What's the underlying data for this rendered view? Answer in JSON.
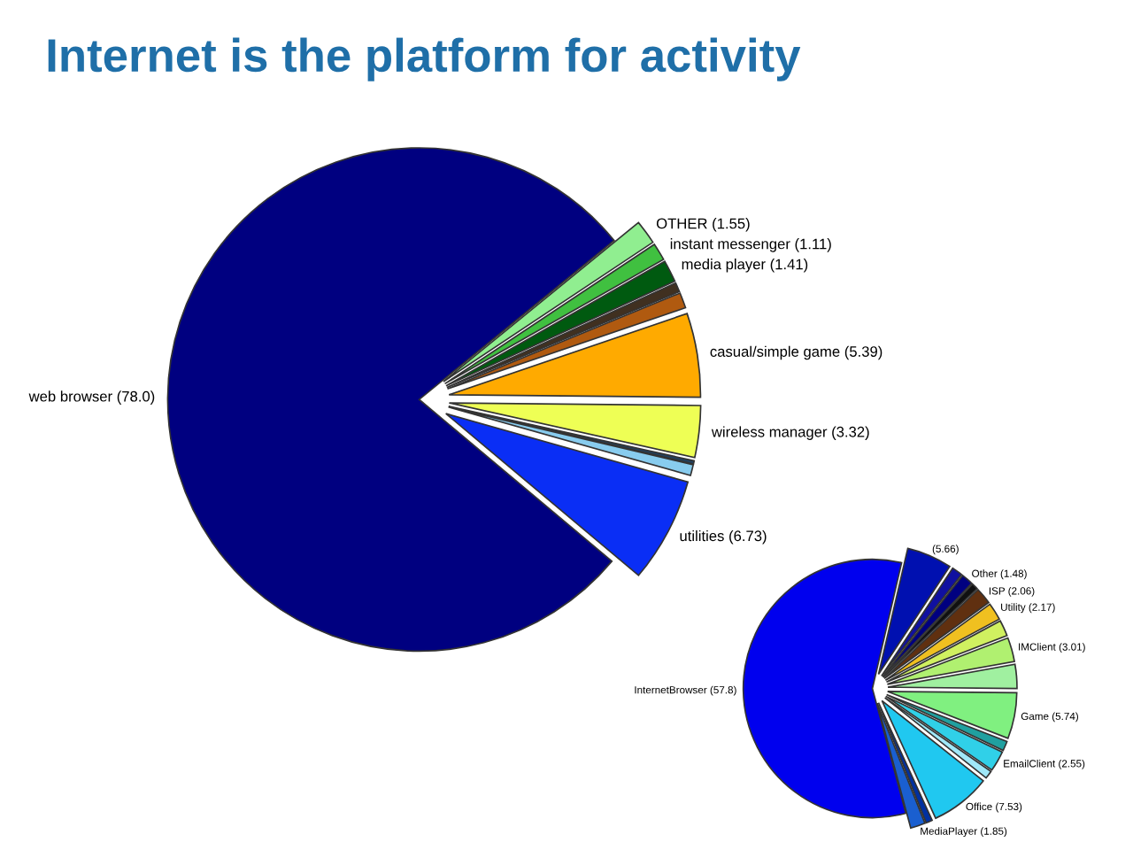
{
  "chart_data": [
    {
      "type": "pie",
      "title": "Internet is the platform for activity",
      "categories": [
        "utilities",
        null,
        null,
        "wireless manager",
        "casual/simple game",
        null,
        null,
        "media player",
        "instant messenger",
        "OTHER",
        "web browser"
      ],
      "values": [
        6.73,
        0.7,
        0.2,
        3.32,
        5.39,
        0.99,
        0.6,
        1.41,
        1.11,
        1.55,
        78.0
      ],
      "value_labels": [
        "(6.73)",
        null,
        null,
        "(3.32)",
        "(5.39)",
        null,
        null,
        "(1.41)",
        "(1.11)",
        "(1.55)",
        "(78.0)"
      ],
      "colors": [
        "#0a2ef5",
        "#88ccee",
        "#204060",
        "#eeff55",
        "#ffaa00",
        "#b05a10",
        "#403020",
        "#005a10",
        "#40c040",
        "#90ee90",
        "#000080"
      ],
      "legend": false
    },
    {
      "type": "pie",
      "categories": [
        "MediaPlayer",
        null,
        "Office",
        null,
        "EmailClient",
        null,
        "Game",
        null,
        "IMClient",
        null,
        "Utility",
        "ISP",
        null,
        "Other",
        null,
        null,
        "InternetBrowser"
      ],
      "values": [
        1.85,
        0.8,
        7.53,
        1.0,
        2.55,
        1.2,
        5.74,
        3.0,
        3.01,
        2.0,
        2.17,
        2.06,
        0.8,
        1.48,
        1.35,
        5.66,
        57.8
      ],
      "value_labels": [
        "(1.85)",
        null,
        "(7.53)",
        null,
        "(2.55)",
        null,
        "(5.74)",
        null,
        "(3.01)",
        null,
        "(2.17)",
        "(2.06)",
        null,
        "(1.48)",
        null,
        "(5.66)",
        "(57.8)"
      ],
      "colors": [
        "#1a5fd0",
        "#0030a0",
        "#20c8f0",
        "#a0e8f8",
        "#30d0e8",
        "#20a0a0",
        "#80f080",
        "#a0f0a0",
        "#b0f070",
        "#d0f060",
        "#f0c020",
        "#603010",
        "#101010",
        "#000080",
        "#1010a0",
        "#0010b0",
        "#0000ee"
      ],
      "legend": false
    }
  ]
}
